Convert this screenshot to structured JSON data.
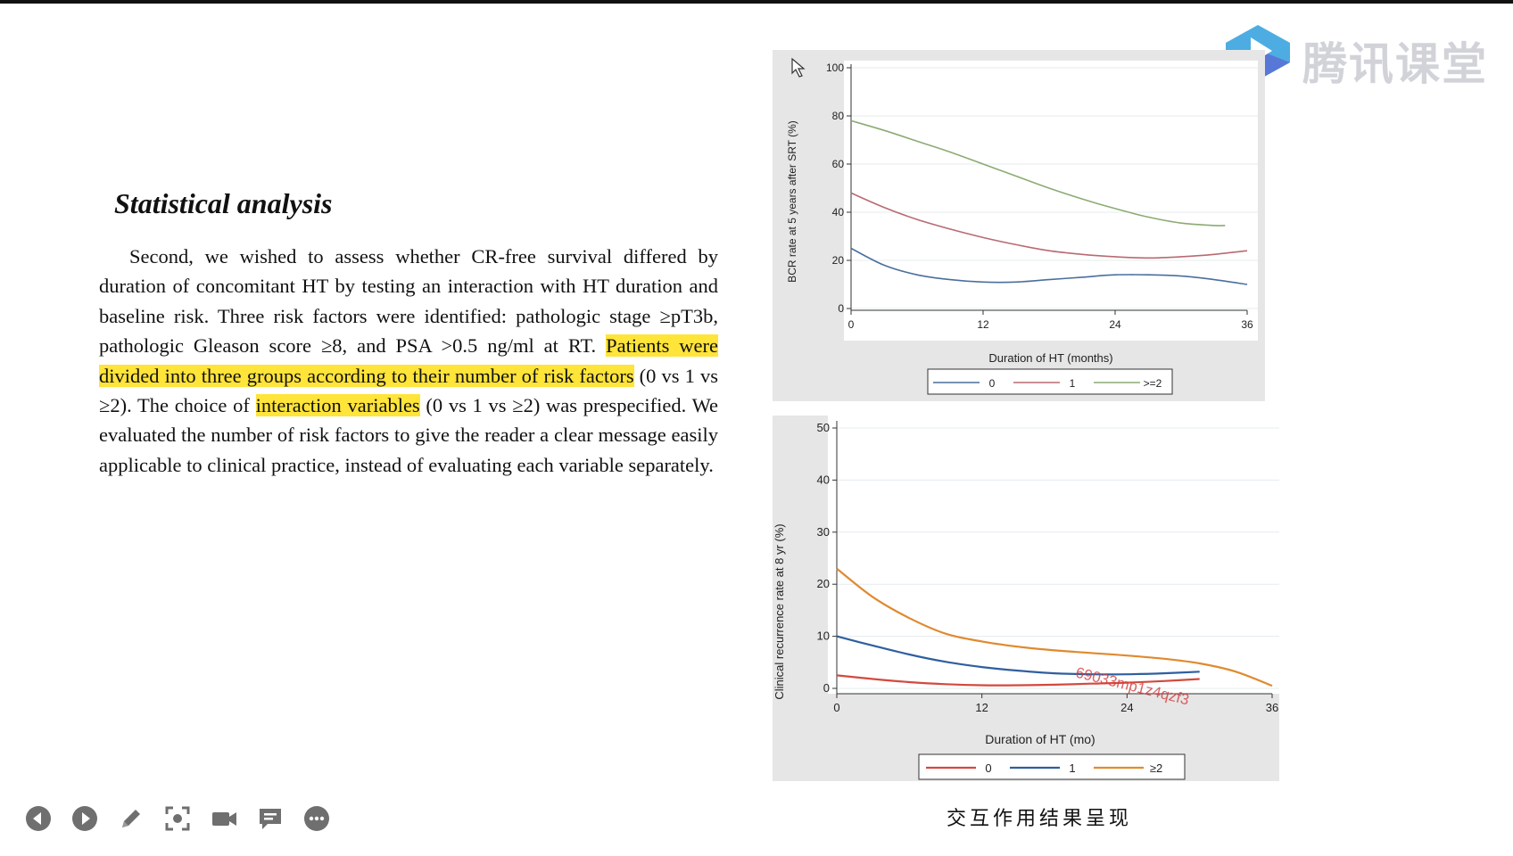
{
  "brand": {
    "name": "腾讯课堂"
  },
  "section": {
    "heading": "Statistical analysis",
    "paragraph_parts": [
      "Second, we wished to assess whether CR-free survival differed by duration of concomitant HT by testing an interaction with HT duration and baseline risk. Three risk factors were identified: pathologic stage ≥pT3b, pathologic Gleason score ≥8, and PSA >0.5 ng/ml at RT. ",
      "Patients were divided into three groups according to their number of risk factors",
      " (0 vs 1 vs ≥2). The choice of ",
      "interaction variables",
      " (0 vs 1 vs ≥2) was prespecified. We evaluated the number of risk factors to give the reader a clear message easily applicable to clinical practice, instead of evaluating each variable separately."
    ]
  },
  "caption": "交互作用结果呈现",
  "watermark": "69033mp1z4qzf3",
  "colors": {
    "highlight": "#ffe43a",
    "series0": "#4a6f9c",
    "series1": "#b86a72",
    "series2": "#8cab72"
  },
  "chart_data": [
    {
      "type": "line",
      "xlabel": "Duration of HT (months)",
      "ylabel": "BCR rate at 5 years after SRT (%)",
      "xlim": [
        0,
        36
      ],
      "ylim": [
        0,
        100
      ],
      "xticks": [
        "0",
        "12",
        "24",
        "36"
      ],
      "yticks": [
        "0",
        "20",
        "40",
        "60",
        "80",
        "100"
      ],
      "legend_position": "bottom",
      "series": [
        {
          "name": "0",
          "color": "#4a6f9c",
          "x": [
            0,
            3,
            6,
            9,
            12,
            15,
            18,
            21,
            24,
            27,
            30,
            33,
            36
          ],
          "y": [
            25,
            18,
            14,
            12,
            11,
            11,
            12,
            13,
            14,
            14,
            13.5,
            12,
            10
          ]
        },
        {
          "name": "1",
          "color": "#b86a72",
          "x": [
            0,
            3,
            6,
            9,
            12,
            15,
            18,
            21,
            24,
            27,
            30,
            33,
            36
          ],
          "y": [
            48,
            42,
            37,
            33,
            29.5,
            26.5,
            24,
            22.5,
            21.5,
            21,
            21.5,
            22.5,
            24
          ]
        },
        {
          "name": ">=2",
          "color": "#8cab72",
          "x": [
            0,
            3,
            6,
            9,
            12,
            15,
            18,
            21,
            24,
            27,
            30,
            33,
            34
          ],
          "y": [
            78,
            74,
            69.5,
            65,
            60,
            55,
            50,
            45.5,
            41.5,
            38,
            35.5,
            34.5,
            34.5
          ]
        }
      ]
    },
    {
      "type": "line",
      "xlabel": "Duration of HT (mo)",
      "ylabel": "Clinical recurrence rate at 8 yr (%)",
      "xlim": [
        0,
        36
      ],
      "ylim": [
        0,
        50
      ],
      "xticks": [
        "0",
        "12",
        "24",
        "36"
      ],
      "yticks": [
        "0",
        "10",
        "20",
        "30",
        "40",
        "50"
      ],
      "legend_position": "bottom",
      "series": [
        {
          "name": "0",
          "color": "#d24a3e",
          "x": [
            0,
            3,
            6,
            9,
            12,
            15,
            18,
            21,
            24,
            27,
            30
          ],
          "y": [
            2.5,
            1.8,
            1.2,
            0.8,
            0.6,
            0.6,
            0.7,
            0.9,
            1.1,
            1.4,
            1.8
          ]
        },
        {
          "name": "1",
          "color": "#2f5f9f",
          "x": [
            0,
            3,
            6,
            9,
            12,
            15,
            18,
            21,
            24,
            27,
            30
          ],
          "y": [
            10,
            8.2,
            6.5,
            5.1,
            4.1,
            3.4,
            2.9,
            2.7,
            2.7,
            2.9,
            3.2
          ]
        },
        {
          "name": "≥2",
          "color": "#e08a2e",
          "x": [
            0,
            3,
            6,
            9,
            12,
            15,
            18,
            21,
            24,
            27,
            30,
            33,
            36
          ],
          "y": [
            23,
            17.5,
            13.5,
            10.5,
            9,
            8,
            7.3,
            6.8,
            6.3,
            5.7,
            4.8,
            3.2,
            0.5
          ]
        }
      ]
    }
  ]
}
